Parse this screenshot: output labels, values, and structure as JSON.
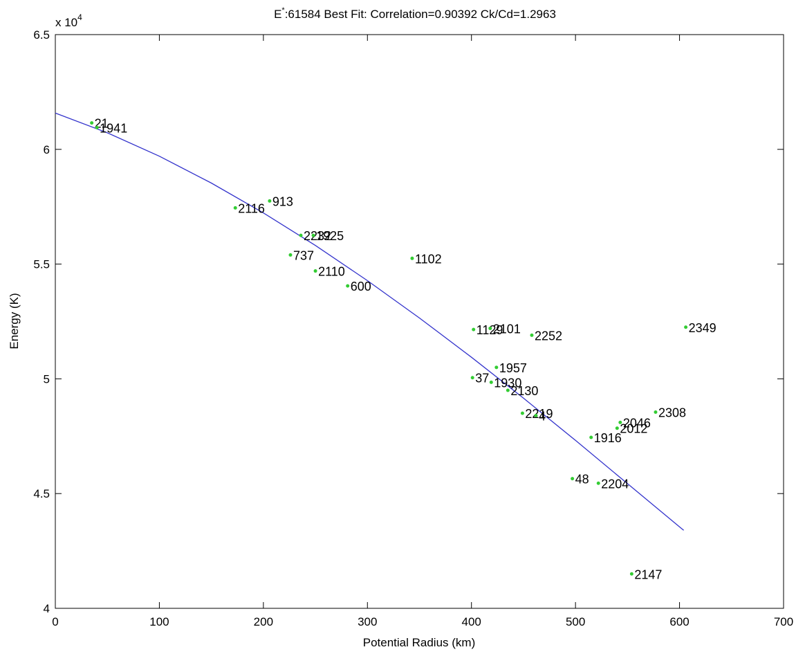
{
  "chart_data": {
    "type": "scatter",
    "title_prefix": "E",
    "title_superscript": "*",
    "title_rest": ":61584 Best Fit: Correlation=0.90392 Ck/Cd=1.2963",
    "xlabel": "Potential Radius (km)",
    "ylabel": "Energy (K)",
    "y_multiplier_base": "x 10",
    "y_multiplier_exp": "4",
    "xlim": [
      0,
      700
    ],
    "ylim": [
      4,
      6.5
    ],
    "xticks": [
      0,
      100,
      200,
      300,
      400,
      500,
      600,
      700
    ],
    "yticks": [
      4,
      4.5,
      5,
      5.5,
      6,
      6.5
    ],
    "grid": false,
    "point_color": "#33cc33",
    "fit_color": "#3333cc",
    "points": [
      {
        "label": "21",
        "x": 35,
        "y": 6.115
      },
      {
        "label": "1941",
        "x": 40,
        "y": 6.095
      },
      {
        "label": "913",
        "x": 206,
        "y": 5.775
      },
      {
        "label": "2116",
        "x": 173,
        "y": 5.745
      },
      {
        "label": "2232",
        "x": 236,
        "y": 5.625
      },
      {
        "label": "1925",
        "x": 248,
        "y": 5.625
      },
      {
        "label": "737",
        "x": 226,
        "y": 5.54
      },
      {
        "label": "2110",
        "x": 250,
        "y": 5.47
      },
      {
        "label": "1102",
        "x": 343,
        "y": 5.525
      },
      {
        "label": "600",
        "x": 281,
        "y": 5.405
      },
      {
        "label": "1129",
        "x": 402,
        "y": 5.215
      },
      {
        "label": "2101",
        "x": 418,
        "y": 5.22
      },
      {
        "label": "2252",
        "x": 458,
        "y": 5.19
      },
      {
        "label": "2349",
        "x": 606,
        "y": 5.225
      },
      {
        "label": "1957",
        "x": 424,
        "y": 5.05
      },
      {
        "label": "37",
        "x": 401,
        "y": 5.005
      },
      {
        "label": "1930",
        "x": 419,
        "y": 4.985
      },
      {
        "label": "2130",
        "x": 435,
        "y": 4.95
      },
      {
        "label": "2308",
        "x": 577,
        "y": 4.855
      },
      {
        "label": "2219",
        "x": 449,
        "y": 4.85
      },
      {
        "label": "4",
        "x": 462,
        "y": 4.84
      },
      {
        "label": "2046",
        "x": 543,
        "y": 4.81
      },
      {
        "label": "2012",
        "x": 540,
        "y": 4.785
      },
      {
        "label": "1916",
        "x": 515,
        "y": 4.745
      },
      {
        "label": "48",
        "x": 497,
        "y": 4.565
      },
      {
        "label": "2204",
        "x": 522,
        "y": 4.545
      },
      {
        "label": "2147",
        "x": 554,
        "y": 4.15
      }
    ],
    "fit": {
      "x": [
        0,
        50,
        100,
        150,
        200,
        250,
        300,
        350,
        400,
        450,
        500,
        550,
        604
      ],
      "y": [
        6.158,
        6.072,
        5.97,
        5.853,
        5.723,
        5.581,
        5.428,
        5.265,
        5.094,
        4.916,
        4.732,
        4.543,
        4.34
      ]
    }
  }
}
